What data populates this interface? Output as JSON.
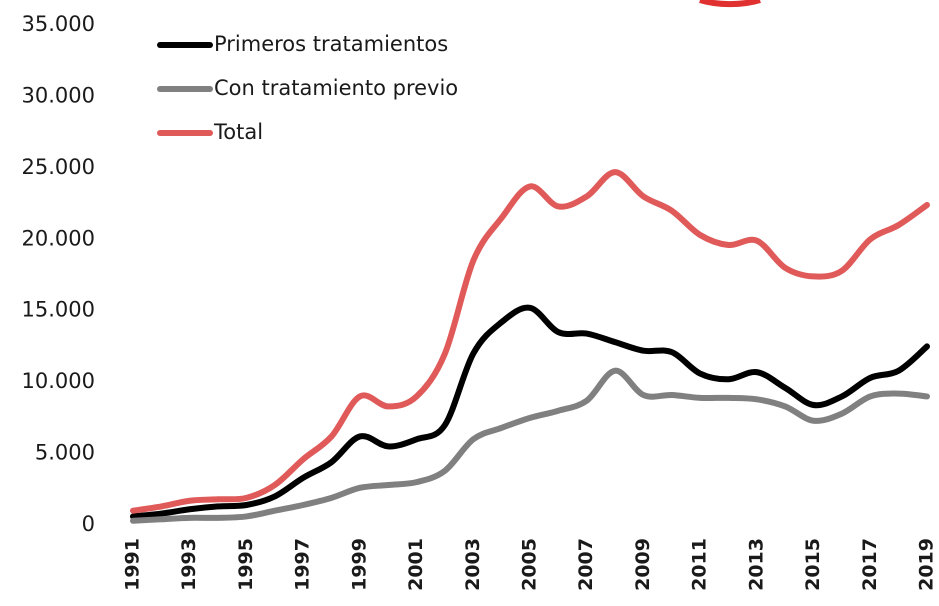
{
  "chart_data": {
    "type": "line",
    "categories": [
      "1991",
      null,
      "1993",
      null,
      "1995",
      null,
      "1997",
      null,
      "1999",
      null,
      "2001",
      null,
      "2003",
      null,
      "2005",
      null,
      "2007",
      null,
      "2009",
      null,
      "2011",
      null,
      "2013",
      null,
      "2015",
      null,
      "2017",
      null,
      "2019"
    ],
    "series": [
      {
        "name": "Primeros tratamientos",
        "color": "#000000",
        "values": [
          600,
          800,
          1100,
          1300,
          1400,
          2000,
          3300,
          4400,
          6200,
          5500,
          6000,
          7000,
          12000,
          14200,
          15200,
          13500,
          13400,
          12800,
          12200,
          12100,
          10600,
          10200,
          10700,
          9600,
          8400,
          9000,
          10300,
          10800,
          12500
        ]
      },
      {
        "name": "Con tratamiento previo",
        "color": "#808080",
        "values": [
          300,
          400,
          500,
          500,
          600,
          1000,
          1400,
          1900,
          2600,
          2800,
          3000,
          3800,
          6000,
          6800,
          7500,
          8000,
          8700,
          10800,
          9100,
          9100,
          8900,
          8900,
          8800,
          8300,
          7300,
          7800,
          9000,
          9200,
          9000
        ]
      },
      {
        "name": "Total",
        "color": "#e05a5a",
        "values": [
          1000,
          1300,
          1700,
          1800,
          1900,
          2800,
          4600,
          6200,
          9000,
          8300,
          9000,
          12000,
          18500,
          21500,
          23700,
          22300,
          23000,
          24700,
          23000,
          22000,
          20300,
          19600,
          19900,
          18000,
          17400,
          17800,
          20000,
          21000,
          22400
        ]
      }
    ],
    "ylim": [
      0,
      35000
    ],
    "yticks": [
      0,
      {
        "value": 5000,
        "label": "5.000"
      },
      {
        "value": 10000,
        "label": "10.000"
      },
      {
        "value": 15000,
        "label": "15.000"
      },
      {
        "value": 20000,
        "label": "20.000"
      },
      {
        "value": 25000,
        "label": "25.000"
      },
      {
        "value": 30000,
        "label": "30.000"
      },
      {
        "value": 35000,
        "label": "35.000"
      }
    ],
    "grid": false
  }
}
